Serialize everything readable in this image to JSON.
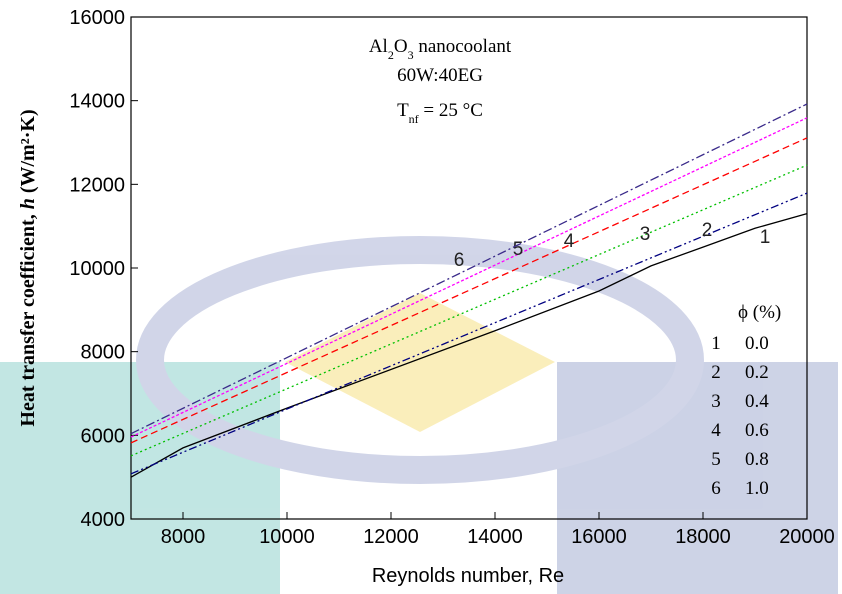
{
  "chart_data": {
    "type": "line",
    "x_label": "Reynolds number, Re",
    "y_label": [
      "Heat transfer coefficient, ",
      "h",
      " (W/m²·K)"
    ],
    "annotations": [
      {
        "parts": [
          "Al",
          "2",
          "O",
          "3",
          " nanocoolant"
        ]
      },
      {
        "parts": [
          "60W:40EG"
        ]
      },
      {
        "parts": [
          "T",
          "nf",
          " = 25 °C"
        ]
      }
    ],
    "legend_title": "ϕ (%)",
    "xlim": [
      7000,
      20000
    ],
    "xticks": [
      8000,
      10000,
      12000,
      14000,
      16000,
      18000,
      20000
    ],
    "ylim": [
      4000,
      16000
    ],
    "yticks": [
      4000,
      6000,
      8000,
      10000,
      12000,
      14000,
      16000
    ],
    "series": [
      {
        "name": "1",
        "phi": "0.0",
        "color": "#000000",
        "dash": "none",
        "x": [
          7000,
          8000,
          10000,
          14000,
          16000,
          17000,
          18000,
          19000,
          20000
        ],
        "values": [
          5000,
          5700,
          6650,
          8500,
          9450,
          10050,
          10500,
          10950,
          11300
        ]
      },
      {
        "name": "2",
        "phi": "0.2",
        "color": "#000080",
        "dash": "8,3,2,3,2,3",
        "x": [
          7000,
          20000
        ],
        "values": [
          5080,
          11790
        ]
      },
      {
        "name": "3",
        "phi": "0.4",
        "color": "#00c000",
        "dash": "2,3",
        "x": [
          7000,
          20000
        ],
        "values": [
          5510,
          12460
        ]
      },
      {
        "name": "4",
        "phi": "0.6",
        "color": "#ff0000",
        "dash": "7,4",
        "x": [
          7000,
          20000
        ],
        "values": [
          5820,
          13110
        ]
      },
      {
        "name": "5",
        "phi": "0.8",
        "color": "#ff00ff",
        "dash": "3,2",
        "x": [
          7000,
          20000
        ],
        "values": [
          5960,
          13590
        ]
      },
      {
        "name": "6",
        "phi": "1.0",
        "color": "#3a2a8a",
        "dash": "9,3,2,3",
        "x": [
          7000,
          20000
        ],
        "values": [
          6040,
          13920
        ]
      }
    ]
  }
}
